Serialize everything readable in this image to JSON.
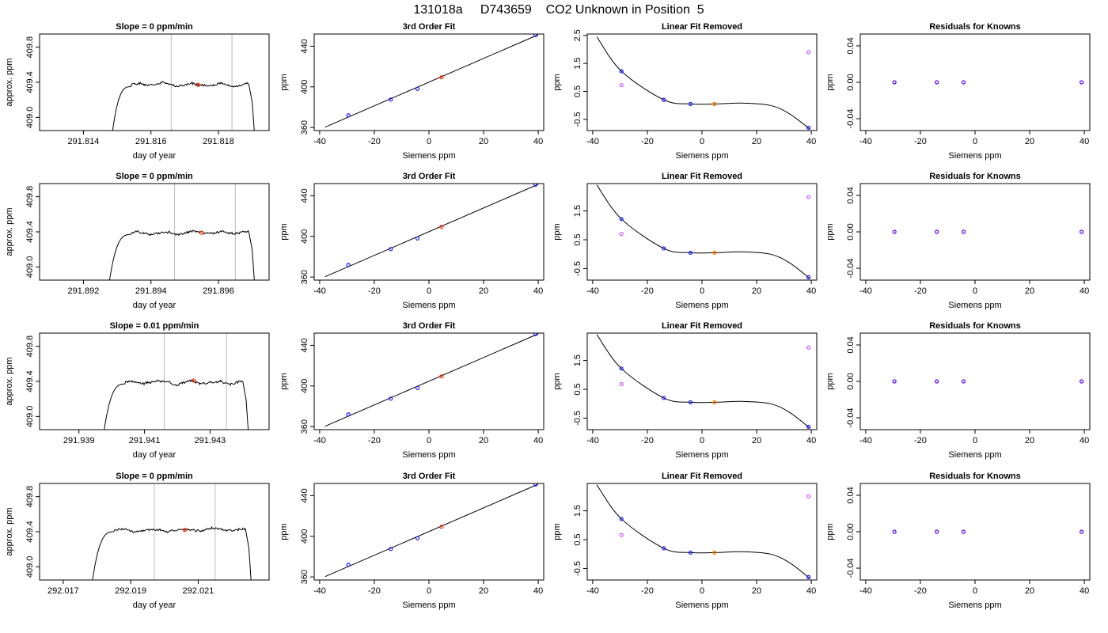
{
  "figure": {
    "title": "131018a     D743659    CO2 Unknown in Position  5"
  },
  "colors": {
    "line": "#000000",
    "vline": "#bbbbbb",
    "unknown": "#ff2a00",
    "known": "#1a1aff",
    "unknown_lin": "#ff8000",
    "residual_open": "#cc33ff",
    "residual_point": "#5500ff"
  },
  "chart_data": [
    {
      "type": "line",
      "row": 0,
      "title": "Slope =  0  ppm/min",
      "xlabel": "day of year",
      "ylabel": "approx. ppm",
      "xlim": [
        291.8127,
        291.8195
      ],
      "ylim": [
        408.85,
        409.95
      ],
      "xticks": [
        "291.814",
        "291.816",
        "291.818"
      ],
      "yticks": [
        "409.0",
        "409.4",
        "409.8"
      ],
      "vlines": [
        291.8166,
        291.8184
      ],
      "marker": [
        291.8174,
        409.37
      ],
      "trace": {
        "start": 291.8148,
        "rise_end": 291.8154,
        "plateau": 409.37,
        "fall_start": 291.8189,
        "end": 291.8191,
        "seed": 1
      }
    },
    {
      "type": "scatter",
      "row": 0,
      "title": "3rd Order Fit",
      "xlabel": "Siemens ppm",
      "ylabel": "ppm",
      "xlim": [
        -42,
        42
      ],
      "ylim": [
        357,
        452
      ],
      "xticks": [
        "-40",
        "-20",
        "0",
        "20",
        "40"
      ],
      "yticks": [
        "360",
        "400",
        "440"
      ],
      "knowns": {
        "x": [
          -29.5,
          -14,
          -4.2,
          39
        ],
        "y": [
          372,
          387.5,
          398,
          451
        ]
      },
      "unknown": {
        "x": 4.6,
        "y": 409.4
      },
      "fit": {
        "x0": -38,
        "x1": 40
      }
    },
    {
      "type": "scatter",
      "row": 0,
      "title": "Linear Fit Removed",
      "xlabel": "Siemens ppm",
      "ylabel": "ppm",
      "xlim": [
        -42,
        42
      ],
      "ylim": [
        -0.9,
        2.55
      ],
      "xticks": [
        "-40",
        "-20",
        "0",
        "20",
        "40"
      ],
      "yticks": [
        "-0.5",
        "0.5",
        "1.5",
        "2.5"
      ],
      "knowns": {
        "x": [
          -29.5,
          -14,
          -4.2,
          39
        ],
        "y": [
          1.22,
          0.2,
          0.05,
          -0.8
        ]
      },
      "unknown": {
        "x": 4.6,
        "y": 0.05
      },
      "linear": {
        "x": [
          -29.5,
          39
        ],
        "y": [
          0.72,
          1.9
        ]
      },
      "curve": [
        [
          -38.5,
          2.45
        ],
        [
          -29.5,
          1.22
        ],
        [
          -14,
          0.2
        ],
        [
          -4.2,
          0.05
        ],
        [
          4.6,
          0.05
        ],
        [
          15,
          0.08
        ],
        [
          25,
          0.0
        ],
        [
          32,
          -0.3
        ],
        [
          39.5,
          -0.85
        ]
      ]
    },
    {
      "type": "scatter",
      "row": 0,
      "title": "Residuals for Knowns",
      "xlabel": "Siemens ppm",
      "ylabel": "ppm",
      "xlim": [
        -42,
        42
      ],
      "ylim": [
        -0.053,
        0.053
      ],
      "xticks": [
        "-40",
        "-20",
        "0",
        "20",
        "40"
      ],
      "yticks": [
        "-0.04",
        "0.00",
        "0.04"
      ],
      "residuals": {
        "x": [
          -29.5,
          -14,
          -4.2,
          39
        ],
        "y": [
          0,
          0,
          0,
          0
        ]
      }
    },
    {
      "type": "line",
      "row": 1,
      "title": "Slope =  0  ppm/min",
      "xlabel": "day of year",
      "ylabel": "approx. ppm",
      "xlim": [
        291.8907,
        291.8975
      ],
      "ylim": [
        408.85,
        409.95
      ],
      "xticks": [
        "291.892",
        "291.894",
        "291.896"
      ],
      "yticks": [
        "409.0",
        "409.4",
        "409.8"
      ],
      "vlines": [
        291.8947,
        291.8965
      ],
      "marker": [
        291.8955,
        409.39
      ],
      "trace": {
        "start": 291.8927,
        "rise_end": 291.8934,
        "plateau": 409.39,
        "fall_start": 291.8969,
        "end": 291.8971,
        "seed": 2
      }
    },
    {
      "type": "scatter",
      "row": 1,
      "title": "3rd Order Fit",
      "xlabel": "Siemens ppm",
      "ylabel": "ppm",
      "xlim": [
        -42,
        42
      ],
      "ylim": [
        357,
        452
      ],
      "xticks": [
        "-40",
        "-20",
        "0",
        "20",
        "40"
      ],
      "yticks": [
        "360",
        "400",
        "440"
      ],
      "knowns": {
        "x": [
          -29.5,
          -14,
          -4.2,
          39
        ],
        "y": [
          372,
          387.5,
          398,
          451
        ]
      },
      "unknown": {
        "x": 4.6,
        "y": 409.4
      },
      "fit": {
        "x0": -38,
        "x1": 40
      }
    },
    {
      "type": "scatter",
      "row": 1,
      "title": "Linear Fit Removed",
      "xlabel": "Siemens ppm",
      "ylabel": "ppm",
      "xlim": [
        -42,
        42
      ],
      "ylim": [
        -0.9,
        2.45
      ],
      "xticks": [
        "-40",
        "-20",
        "0",
        "20",
        "40"
      ],
      "yticks": [
        "-0.5",
        "0.5",
        "1.5"
      ],
      "knowns": {
        "x": [
          -29.5,
          -14,
          -4.2,
          39
        ],
        "y": [
          1.22,
          0.2,
          0.05,
          -0.8
        ]
      },
      "unknown": {
        "x": 4.6,
        "y": 0.05
      },
      "linear": {
        "x": [
          -29.5,
          39
        ],
        "y": [
          0.7,
          1.98
        ]
      },
      "curve": [
        [
          -38.5,
          2.4
        ],
        [
          -29.5,
          1.22
        ],
        [
          -14,
          0.2
        ],
        [
          -4.2,
          0.05
        ],
        [
          4.6,
          0.05
        ],
        [
          15,
          0.08
        ],
        [
          25,
          0.0
        ],
        [
          32,
          -0.3
        ],
        [
          39.5,
          -0.85
        ]
      ]
    },
    {
      "type": "scatter",
      "row": 1,
      "title": "Residuals for Knowns",
      "xlabel": "Siemens ppm",
      "ylabel": "ppm",
      "xlim": [
        -42,
        42
      ],
      "ylim": [
        -0.053,
        0.053
      ],
      "xticks": [
        "-40",
        "-20",
        "0",
        "20",
        "40"
      ],
      "yticks": [
        "-0.04",
        "0.00",
        "0.04"
      ],
      "residuals": {
        "x": [
          -29.5,
          -14,
          -4.2,
          39
        ],
        "y": [
          0,
          0,
          0,
          0
        ]
      }
    },
    {
      "type": "line",
      "row": 2,
      "title": "Slope =  0.01  ppm/min",
      "xlabel": "day of year",
      "ylabel": "approx. ppm",
      "xlim": [
        291.9378,
        291.9448
      ],
      "ylim": [
        408.85,
        409.95
      ],
      "xticks": [
        "291.939",
        "291.941",
        "291.943"
      ],
      "yticks": [
        "409.0",
        "409.4",
        "409.8"
      ],
      "vlines": [
        291.9416,
        291.9435
      ],
      "marker": [
        291.9425,
        409.41
      ],
      "trace": {
        "start": 291.9397,
        "rise_end": 291.9404,
        "plateau": 409.39,
        "fall_start": 291.944,
        "end": 291.9442,
        "seed": 3
      }
    },
    {
      "type": "scatter",
      "row": 2,
      "title": "3rd Order Fit",
      "xlabel": "Siemens ppm",
      "ylabel": "ppm",
      "xlim": [
        -42,
        42
      ],
      "ylim": [
        357,
        452
      ],
      "xticks": [
        "-40",
        "-20",
        "0",
        "20",
        "40"
      ],
      "yticks": [
        "360",
        "400",
        "440"
      ],
      "knowns": {
        "x": [
          -29.5,
          -14,
          -4.2,
          39
        ],
        "y": [
          372,
          387.5,
          398,
          451
        ]
      },
      "unknown": {
        "x": 4.6,
        "y": 409.4
      },
      "fit": {
        "x0": -38,
        "x1": 40
      }
    },
    {
      "type": "scatter",
      "row": 2,
      "title": "Linear Fit Removed",
      "xlabel": "Siemens ppm",
      "ylabel": "ppm",
      "xlim": [
        -42,
        42
      ],
      "ylim": [
        -0.9,
        2.45
      ],
      "xticks": [
        "-40",
        "-20",
        "0",
        "20",
        "40"
      ],
      "yticks": [
        "-0.5",
        "0.5",
        "1.5"
      ],
      "knowns": {
        "x": [
          -29.5,
          -14,
          -4.2,
          39
        ],
        "y": [
          1.22,
          0.2,
          0.05,
          -0.8
        ]
      },
      "unknown": {
        "x": 4.6,
        "y": 0.05
      },
      "linear": {
        "x": [
          -29.5,
          39
        ],
        "y": [
          0.68,
          1.95
        ]
      },
      "curve": [
        [
          -38.5,
          2.4
        ],
        [
          -29.5,
          1.22
        ],
        [
          -14,
          0.2
        ],
        [
          -4.2,
          0.05
        ],
        [
          4.6,
          0.05
        ],
        [
          15,
          0.08
        ],
        [
          25,
          0.0
        ],
        [
          32,
          -0.3
        ],
        [
          39.5,
          -0.85
        ]
      ]
    },
    {
      "type": "scatter",
      "row": 2,
      "title": "Residuals for Knowns",
      "xlabel": "Siemens ppm",
      "ylabel": "ppm",
      "xlim": [
        -42,
        42
      ],
      "ylim": [
        -0.053,
        0.053
      ],
      "xticks": [
        "-40",
        "-20",
        "0",
        "20",
        "40"
      ],
      "yticks": [
        "-0.04",
        "0.00",
        "0.04"
      ],
      "residuals": {
        "x": [
          -29.5,
          -14,
          -4.2,
          39
        ],
        "y": [
          0,
          0,
          0,
          0
        ]
      }
    },
    {
      "type": "line",
      "row": 3,
      "title": "Slope =  0  ppm/min",
      "xlabel": "day of year",
      "ylabel": "approx. ppm",
      "xlim": [
        292.0163,
        292.0231
      ],
      "ylim": [
        408.85,
        409.95
      ],
      "xticks": [
        "292.017",
        "292.019",
        "292.021"
      ],
      "yticks": [
        "409.0",
        "409.4",
        "409.8"
      ],
      "vlines": [
        292.0197,
        292.0215
      ],
      "marker": [
        292.0206,
        409.42
      ],
      "trace": {
        "start": 292.0178,
        "rise_end": 292.0185,
        "plateau": 409.42,
        "fall_start": 292.0224,
        "end": 292.0226,
        "seed": 4
      }
    },
    {
      "type": "scatter",
      "row": 3,
      "title": "3rd Order Fit",
      "xlabel": "Siemens ppm",
      "ylabel": "ppm",
      "xlim": [
        -42,
        42
      ],
      "ylim": [
        357,
        452
      ],
      "xticks": [
        "-40",
        "-20",
        "0",
        "20",
        "40"
      ],
      "yticks": [
        "360",
        "400",
        "440"
      ],
      "knowns": {
        "x": [
          -29.5,
          -14,
          -4.2,
          39
        ],
        "y": [
          372,
          387.5,
          398,
          451
        ]
      },
      "unknown": {
        "x": 4.6,
        "y": 409.4
      },
      "fit": {
        "x0": -38,
        "x1": 40
      }
    },
    {
      "type": "scatter",
      "row": 3,
      "title": "Linear Fit Removed",
      "xlabel": "Siemens ppm",
      "ylabel": "ppm",
      "xlim": [
        -42,
        42
      ],
      "ylim": [
        -0.9,
        2.45
      ],
      "xticks": [
        "-40",
        "-20",
        "0",
        "20",
        "40"
      ],
      "yticks": [
        "-0.5",
        "0.5",
        "1.5"
      ],
      "knowns": {
        "x": [
          -29.5,
          -14,
          -4.2,
          39
        ],
        "y": [
          1.22,
          0.2,
          0.05,
          -0.8
        ]
      },
      "unknown": {
        "x": 4.6,
        "y": 0.05
      },
      "linear": {
        "x": [
          -29.5,
          39
        ],
        "y": [
          0.66,
          2.0
        ]
      },
      "curve": [
        [
          -38.5,
          2.4
        ],
        [
          -29.5,
          1.22
        ],
        [
          -14,
          0.2
        ],
        [
          -4.2,
          0.05
        ],
        [
          4.6,
          0.05
        ],
        [
          15,
          0.08
        ],
        [
          25,
          0.0
        ],
        [
          32,
          -0.3
        ],
        [
          39.5,
          -0.85
        ]
      ]
    },
    {
      "type": "scatter",
      "row": 3,
      "title": "Residuals for Knowns",
      "xlabel": "Siemens ppm",
      "ylabel": "ppm",
      "xlim": [
        -42,
        42
      ],
      "ylim": [
        -0.053,
        0.053
      ],
      "xticks": [
        "-40",
        "-20",
        "0",
        "20",
        "40"
      ],
      "yticks": [
        "-0.04",
        "0.00",
        "0.04"
      ],
      "residuals": {
        "x": [
          -29.5,
          -14,
          -4.2,
          39
        ],
        "y": [
          0,
          0,
          0,
          0
        ]
      }
    }
  ]
}
